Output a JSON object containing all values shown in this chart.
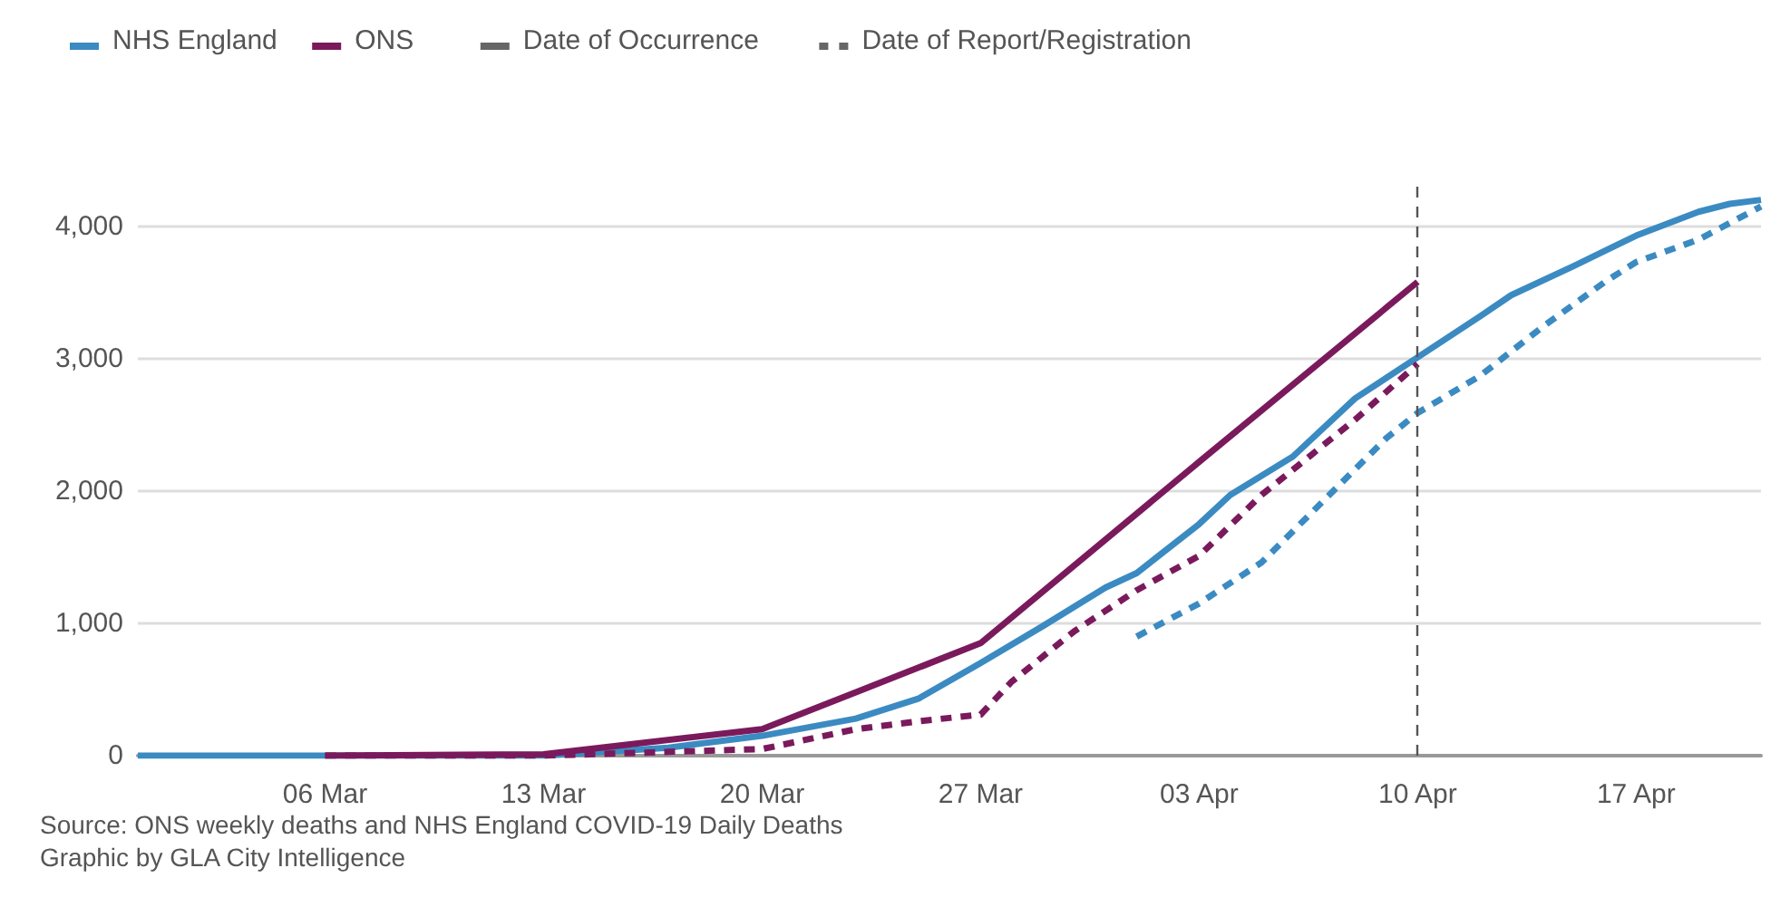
{
  "chart_data": {
    "type": "line",
    "legend": "top left",
    "grid": "y",
    "marker": "none",
    "xlim": [
      "--02-29",
      "--04-21"
    ],
    "xticks": [
      {
        "value": "--03-06",
        "label": "06 Mar"
      },
      {
        "value": "--03-13",
        "label": "13 Mar"
      },
      {
        "value": "--03-20",
        "label": "20 Mar"
      },
      {
        "value": "--03-27",
        "label": "27 Mar"
      },
      {
        "value": "--04-03",
        "label": "03 Apr"
      },
      {
        "value": "--04-10",
        "label": "10 Apr"
      },
      {
        "value": "--04-17",
        "label": "17 Apr"
      }
    ],
    "ylim": [
      0,
      4300
    ],
    "yticks": [
      0,
      {
        "value": 1000,
        "label": "1,000"
      },
      {
        "value": 2000,
        "label": "2,000"
      },
      {
        "value": 3000,
        "label": "3,000"
      },
      {
        "value": 4000,
        "label": "4,000"
      }
    ],
    "series": [
      {
        "name": "NHS England",
        "color": "#3b8bc2",
        "line_style": "solid",
        "x": [
          "--02-29",
          "--03-06",
          "--03-13",
          "--03-17",
          "--03-20",
          "--03-23",
          "--03-25",
          "--03-27",
          "--03-29",
          "--03-31",
          "--04-01",
          "--04-03",
          "--04-04",
          "--04-06",
          "--04-08",
          "--04-10",
          "--04-12",
          "--04-13",
          "--04-15",
          "--04-17",
          "--04-19",
          "--04-20",
          "--04-21"
        ],
        "values": [
          0,
          0,
          0,
          60,
          150,
          280,
          430,
          700,
          980,
          1270,
          1380,
          1750,
          1970,
          2260,
          2700,
          3010,
          3320,
          3480,
          3700,
          3930,
          4110,
          4170,
          4200
        ]
      },
      {
        "name": "ONS",
        "color": "#7a1a5c",
        "line_style": "solid",
        "x": [
          "--03-06",
          "--03-13",
          "--03-20",
          "--03-27",
          "--04-03",
          "--04-10"
        ],
        "values": [
          0,
          10,
          200,
          850,
          2220,
          3580
        ]
      },
      {
        "color": "#7a1a5c",
        "line_style": "dashed",
        "x": [
          "--03-06",
          "--03-13",
          "--03-20",
          "--03-23",
          "--03-25",
          "--03-27",
          "--03-28",
          "--03-30",
          "--04-01",
          "--04-03",
          "--04-05",
          "--04-08",
          "--04-10"
        ],
        "values": [
          0,
          0,
          50,
          200,
          260,
          310,
          560,
          940,
          1250,
          1510,
          1970,
          2540,
          2960
        ]
      },
      {
        "color": "#3b8bc2",
        "line_style": "dashed",
        "x": [
          "--04-01",
          "--04-03",
          "--04-05",
          "--04-07",
          "--04-09",
          "--04-10",
          "--04-12",
          "--04-14",
          "--04-16",
          "--04-17",
          "--04-19",
          "--04-21"
        ],
        "values": [
          900,
          1150,
          1460,
          1930,
          2400,
          2590,
          2870,
          3240,
          3580,
          3730,
          3900,
          4150
        ]
      }
    ],
    "ref_lines": [
      {
        "axis": "x",
        "value": "--04-10",
        "color": "#555555",
        "line_style": "dashed"
      }
    ],
    "annotations": [
      "Date of Occurrence",
      "Date of Report/Registration",
      "Source: ONS weekly deaths and NHS England COVID-19 Daily Deaths",
      "Graphic by GLA City Intelligence"
    ]
  }
}
